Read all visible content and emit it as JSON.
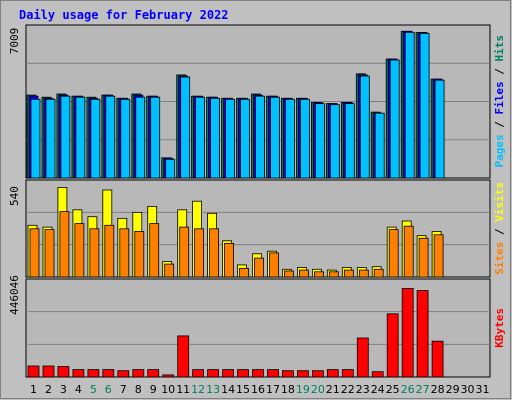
{
  "chart_data": {
    "type": "bar",
    "title": "Daily usage for February 2022",
    "categories": [
      "1",
      "2",
      "3",
      "4",
      "5",
      "6",
      "7",
      "8",
      "9",
      "10",
      "11",
      "12",
      "13",
      "14",
      "15",
      "16",
      "17",
      "18",
      "19",
      "20",
      "21",
      "22",
      "23",
      "24",
      "25",
      "26",
      "27",
      "28",
      "29",
      "30",
      "31"
    ],
    "weekend_days": [
      "5",
      "6",
      "12",
      "13",
      "19",
      "20",
      "26",
      "27"
    ],
    "panels": [
      {
        "id": "hits_files_pages",
        "axis_max_label": "7009",
        "ylim": [
          0,
          7009
        ],
        "right_labels": [
          "Pages",
          "Files",
          "Hits"
        ],
        "series": [
          {
            "name": "Hits",
            "color": "#00805c",
            "values": [
              3900,
              3800,
              3950,
              3850,
              3800,
              3900,
              3750,
              3950,
              3850,
              950,
              4850,
              3850,
              3800,
              3750,
              3750,
              3950,
              3850,
              3750,
              3750,
              3550,
              3500,
              3550,
              4900,
              3100,
              5600,
              6900,
              6850,
              4650,
              0,
              0,
              0
            ]
          },
          {
            "name": "Files",
            "color": "#0000ff",
            "values": [
              3850,
              3750,
              3900,
              3850,
              3750,
              3900,
              3750,
              3900,
              3850,
              930,
              4800,
              3850,
              3800,
              3750,
              3750,
              3900,
              3850,
              3750,
              3750,
              3550,
              3500,
              3550,
              4850,
              3050,
              5600,
              6900,
              6850,
              4650,
              0,
              0,
              0
            ]
          },
          {
            "name": "Pages",
            "color": "#00c0ff",
            "values": [
              3700,
              3700,
              3850,
              3800,
              3700,
              3850,
              3700,
              3800,
              3800,
              880,
              4750,
              3800,
              3750,
              3700,
              3700,
              3850,
              3800,
              3700,
              3700,
              3500,
              3450,
              3500,
              4800,
              3050,
              5550,
              6850,
              6800,
              4600,
              0,
              0,
              0
            ]
          }
        ]
      },
      {
        "id": "visits_sites",
        "axis_max_label": "540",
        "ylim": [
          0,
          540
        ],
        "right_labels": [
          "Sites",
          "Visits"
        ],
        "series": [
          {
            "name": "Visits",
            "color": "#ffff00",
            "values": [
              300,
              290,
              520,
              390,
              350,
              505,
              340,
              375,
              410,
              90,
              390,
              440,
              370,
              210,
              70,
              135,
              150,
              45,
              55,
              45,
              40,
              55,
              55,
              60,
              290,
              325,
              240,
              265,
              0,
              0,
              0
            ]
          },
          {
            "name": "Sites",
            "color": "#ff8000",
            "values": [
              280,
              275,
              380,
              310,
              280,
              300,
              280,
              265,
              310,
              75,
              290,
              280,
              280,
              195,
              50,
              110,
              140,
              35,
              40,
              30,
              30,
              40,
              40,
              45,
              275,
              295,
              225,
              245,
              0,
              0,
              0
            ]
          }
        ]
      },
      {
        "id": "kbytes",
        "axis_max_label": "446046",
        "ylim": [
          0,
          446046
        ],
        "right_labels": [
          "KBytes"
        ],
        "series": [
          {
            "name": "KBytes",
            "color": "#ff0000",
            "values": [
              52000,
              52000,
              50000,
              35000,
              35000,
              35000,
              30000,
              35000,
              35000,
              10000,
              195000,
              35000,
              35000,
              35000,
              35000,
              35000,
              35000,
              30000,
              30000,
              30000,
              35000,
              35000,
              185000,
              25000,
              300000,
              420000,
              410000,
              170000,
              0,
              0,
              0
            ]
          }
        ]
      }
    ],
    "grid": true
  }
}
